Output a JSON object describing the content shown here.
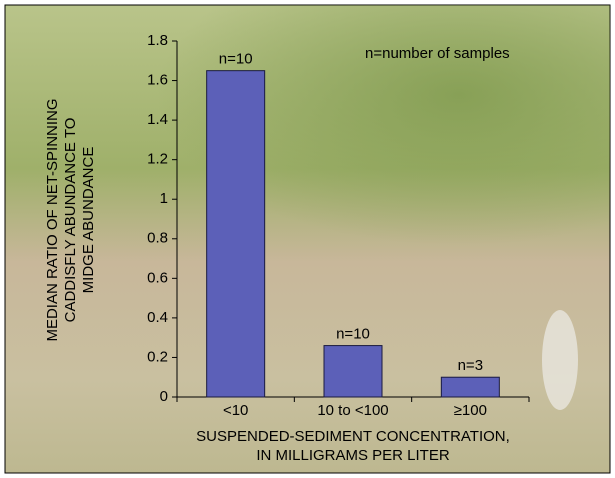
{
  "chart_data": {
    "type": "bar",
    "annotation": "n=number of samples",
    "y_label": [
      "MEDIAN RATIO OF NET-SPINNING",
      "CADDISFLY ABUNDANCE TO",
      "MIDGE ABUNDANCE"
    ],
    "x_label": [
      "SUSPENDED-SEDIMENT CONCENTRATION,",
      "IN MILLIGRAMS PER LITER"
    ],
    "categories": [
      "<10",
      "10 to <100",
      "≥100"
    ],
    "values": [
      1.65,
      0.26,
      0.1
    ],
    "bar_labels": [
      "n=10",
      "n=10",
      "n=3"
    ],
    "color": "#5c60b8",
    "ylim": [
      0,
      1.8
    ],
    "yticks": [
      0,
      0.2,
      0.4,
      0.6,
      0.8,
      1,
      1.2,
      1.4,
      1.6,
      1.8
    ]
  }
}
